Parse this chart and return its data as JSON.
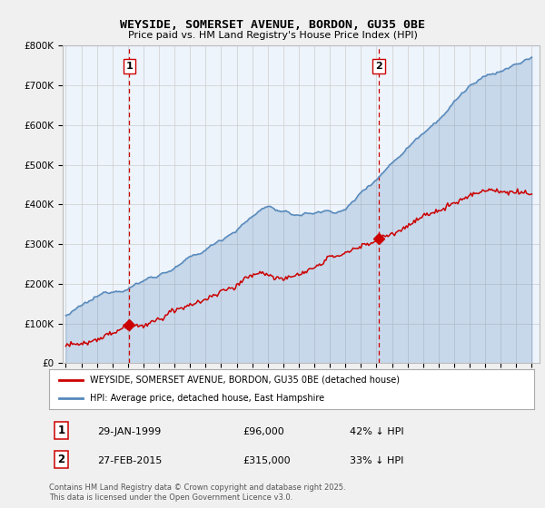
{
  "title": "WEYSIDE, SOMERSET AVENUE, BORDON, GU35 0BE",
  "subtitle": "Price paid vs. HM Land Registry's House Price Index (HPI)",
  "footer": "Contains HM Land Registry data © Crown copyright and database right 2025.\nThis data is licensed under the Open Government Licence v3.0.",
  "legend_label_red": "WEYSIDE, SOMERSET AVENUE, BORDON, GU35 0BE (detached house)",
  "legend_label_blue": "HPI: Average price, detached house, East Hampshire",
  "annotation1_label": "1",
  "annotation1_date": "29-JAN-1999",
  "annotation1_price": "£96,000",
  "annotation1_pct": "42% ↓ HPI",
  "annotation2_label": "2",
  "annotation2_date": "27-FEB-2015",
  "annotation2_price": "£315,000",
  "annotation2_pct": "33% ↓ HPI",
  "color_red": "#cc0000",
  "color_blue": "#5588bb",
  "color_fill": "#ddeeff",
  "color_dashed": "#cc0000",
  "ylim": [
    0,
    800000
  ],
  "yticks": [
    0,
    100000,
    200000,
    300000,
    400000,
    500000,
    600000,
    700000,
    800000
  ],
  "ytick_labels": [
    "£0",
    "£100K",
    "£200K",
    "£300K",
    "£400K",
    "£500K",
    "£600K",
    "£700K",
    "£800K"
  ],
  "sale1_x": 1999.08,
  "sale1_y": 96000,
  "sale2_x": 2015.15,
  "sale2_y": 315000,
  "xmin": 1994.8,
  "xmax": 2025.5,
  "background_color": "#f0f0f0",
  "plot_bg_color": "#eef4fb"
}
